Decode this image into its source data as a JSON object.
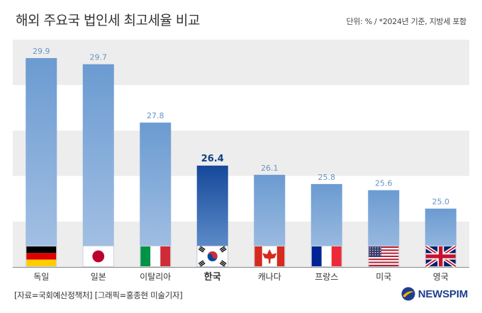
{
  "header": {
    "title": "해외 주요국 법인세 최고세율 비교",
    "note": "단위: % / *2024년 기준, 지방세 포함"
  },
  "footer": {
    "source": "[자료=국회예산정책처] [그래픽=홍종현 미술기자]",
    "logo": "NEWSPIM"
  },
  "colors": {
    "bar_light": "#6f9fd3",
    "bar_highlight": "#1c55a0",
    "band": "#ededed",
    "value_label": "#6a93c4"
  },
  "chart_data": {
    "type": "bar",
    "categories": [
      "독일",
      "일본",
      "이탈리아",
      "한국",
      "캐나다",
      "프랑스",
      "미국",
      "영국"
    ],
    "values": [
      29.9,
      29.7,
      27.8,
      26.4,
      26.1,
      25.8,
      25.6,
      25.0
    ],
    "value_labels": [
      "29.9",
      "29.7",
      "27.8",
      "26.4",
      "26.1",
      "25.8",
      "25.6",
      "25.0"
    ],
    "highlight": "한국",
    "flags": [
      "germany-flag",
      "japan-flag",
      "italy-flag",
      "korea-flag",
      "canada-flag",
      "france-flag",
      "usa-flag",
      "uk-flag"
    ],
    "ylim": [
      23.1,
      30.5
    ],
    "grid": "alternating horizontal bands",
    "title": "해외 주요국 법인세 최고세율 비교",
    "xlabel": "",
    "ylabel": ""
  }
}
